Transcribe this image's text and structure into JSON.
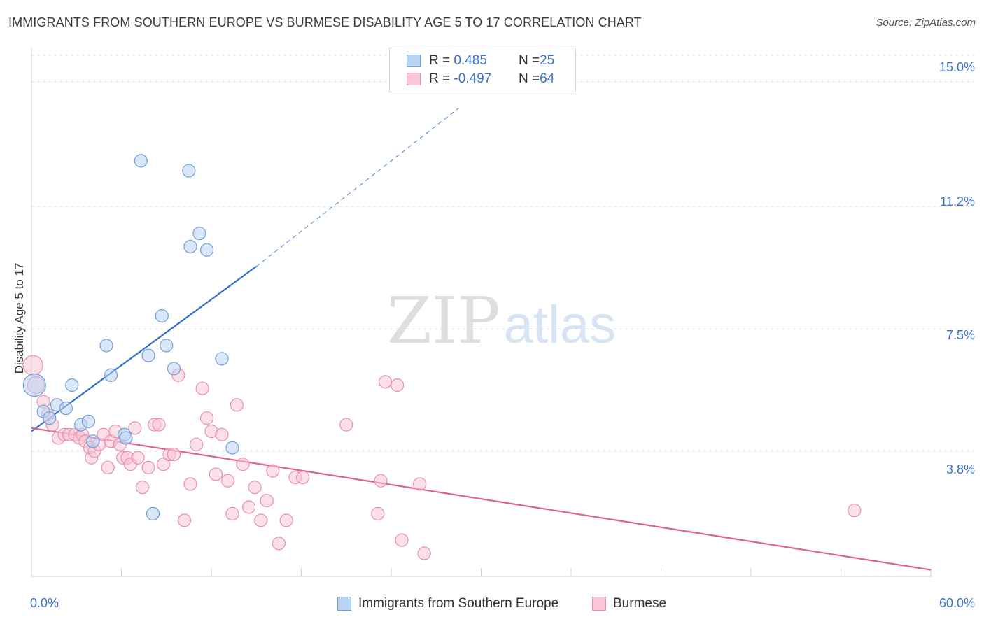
{
  "header": {
    "title": "IMMIGRANTS FROM SOUTHERN EUROPE VS BURMESE DISABILITY AGE 5 TO 17 CORRELATION CHART",
    "source": "Source: ZipAtlas.com"
  },
  "watermark": {
    "zip": "ZIP",
    "atlas": "atlas"
  },
  "legend": {
    "rows": [
      {
        "r_label": "R = ",
        "r_value": "0.485",
        "n_label": "N = ",
        "n_value": "25"
      },
      {
        "r_label": "R = ",
        "r_value": "-0.497",
        "n_label": "N = ",
        "n_value": "64"
      }
    ]
  },
  "bottom_legend": {
    "items": [
      "Immigrants from Southern Europe",
      "Burmese"
    ]
  },
  "colors": {
    "blue_fill": "#b9d3f3",
    "blue_stroke": "#6f9fd8",
    "blue_line": "#2f6fcc",
    "pink_fill": "#f8c6d6",
    "pink_stroke": "#e88fae",
    "pink_line": "#e0628f",
    "tick_text": "#3b74c9",
    "grid": "#dcdcdc"
  },
  "chart_data": {
    "type": "scatter",
    "title": "IMMIGRANTS FROM SOUTHERN EUROPE VS BURMESE DISABILITY AGE 5 TO 17 CORRELATION CHART",
    "xlabel": "",
    "ylabel": "Disability Age 5 to 17",
    "xlim": [
      0,
      60
    ],
    "ylim": [
      0,
      15.8
    ],
    "x_tick_labels": [
      "0.0%",
      "60.0%"
    ],
    "y_ticks": [
      3.8,
      7.5,
      11.2,
      15.0
    ],
    "y_tick_labels": [
      "3.8%",
      "7.5%",
      "11.2%",
      "15.0%"
    ],
    "grid": true,
    "series": [
      {
        "name": "Immigrants from Southern Europe",
        "color": "#b9d3f3",
        "points": [
          [
            0.2,
            5.8,
            16
          ],
          [
            0.8,
            5.0,
            9
          ],
          [
            1.2,
            4.8,
            9
          ],
          [
            1.7,
            5.2,
            9
          ],
          [
            2.3,
            5.1,
            9
          ],
          [
            2.7,
            5.8,
            9
          ],
          [
            3.3,
            4.6,
            9
          ],
          [
            3.8,
            4.7,
            9
          ],
          [
            4.1,
            4.1,
            9
          ],
          [
            5.0,
            7.0,
            9
          ],
          [
            5.3,
            6.1,
            9
          ],
          [
            6.2,
            4.3,
            9
          ],
          [
            6.3,
            4.2,
            9
          ],
          [
            7.3,
            12.6,
            9
          ],
          [
            7.8,
            6.7,
            9
          ],
          [
            8.1,
            1.9,
            9
          ],
          [
            8.7,
            7.9,
            9
          ],
          [
            9.0,
            7.0,
            9
          ],
          [
            9.5,
            6.3,
            9
          ],
          [
            10.5,
            12.3,
            9
          ],
          [
            10.6,
            10.0,
            9
          ],
          [
            11.2,
            10.4,
            9
          ],
          [
            11.7,
            9.9,
            9
          ],
          [
            12.7,
            6.6,
            9
          ],
          [
            13.4,
            3.9,
            9
          ]
        ]
      },
      {
        "name": "Burmese",
        "color": "#f8c6d6",
        "points": [
          [
            0.1,
            6.4,
            14
          ],
          [
            0.3,
            5.8,
            12
          ],
          [
            0.8,
            5.3,
            9
          ],
          [
            1.1,
            4.9,
            9
          ],
          [
            1.4,
            4.6,
            9
          ],
          [
            1.8,
            4.2,
            9
          ],
          [
            2.2,
            4.3,
            9
          ],
          [
            2.5,
            4.3,
            9
          ],
          [
            2.9,
            4.3,
            9
          ],
          [
            3.2,
            4.2,
            9
          ],
          [
            3.4,
            4.3,
            9
          ],
          [
            3.6,
            4.1,
            9
          ],
          [
            3.9,
            3.9,
            9
          ],
          [
            4.0,
            3.6,
            9
          ],
          [
            4.2,
            3.8,
            9
          ],
          [
            4.5,
            4.0,
            9
          ],
          [
            4.8,
            4.3,
            9
          ],
          [
            5.1,
            3.3,
            9
          ],
          [
            5.3,
            4.1,
            9
          ],
          [
            5.6,
            4.4,
            9
          ],
          [
            5.9,
            4.0,
            9
          ],
          [
            6.1,
            3.6,
            9
          ],
          [
            6.4,
            3.6,
            9
          ],
          [
            6.6,
            3.4,
            9
          ],
          [
            6.9,
            4.5,
            9
          ],
          [
            7.1,
            3.6,
            9
          ],
          [
            7.4,
            2.7,
            9
          ],
          [
            7.8,
            3.3,
            9
          ],
          [
            8.2,
            4.6,
            9
          ],
          [
            8.5,
            4.6,
            9
          ],
          [
            8.8,
            3.4,
            9
          ],
          [
            9.2,
            3.7,
            9
          ],
          [
            9.5,
            3.7,
            9
          ],
          [
            9.8,
            6.1,
            9
          ],
          [
            10.2,
            1.7,
            9
          ],
          [
            10.6,
            2.8,
            9
          ],
          [
            11.0,
            4.0,
            9
          ],
          [
            11.4,
            5.7,
            9
          ],
          [
            11.7,
            4.8,
            9
          ],
          [
            12.0,
            4.4,
            9
          ],
          [
            12.3,
            3.1,
            9
          ],
          [
            12.7,
            4.3,
            9
          ],
          [
            13.1,
            2.9,
            9
          ],
          [
            13.4,
            1.9,
            9
          ],
          [
            13.7,
            5.2,
            9
          ],
          [
            14.1,
            3.4,
            9
          ],
          [
            14.5,
            2.1,
            9
          ],
          [
            14.9,
            2.7,
            9
          ],
          [
            15.3,
            1.7,
            9
          ],
          [
            15.7,
            2.3,
            9
          ],
          [
            16.1,
            3.2,
            9
          ],
          [
            16.5,
            1.0,
            9
          ],
          [
            17.0,
            1.7,
            9
          ],
          [
            17.6,
            3.0,
            9
          ],
          [
            18.1,
            3.0,
            9
          ],
          [
            21.0,
            4.6,
            9
          ],
          [
            23.1,
            1.9,
            9
          ],
          [
            23.3,
            2.9,
            9
          ],
          [
            23.6,
            5.9,
            9
          ],
          [
            24.4,
            5.8,
            9
          ],
          [
            24.7,
            1.1,
            9
          ],
          [
            25.9,
            2.8,
            9
          ],
          [
            26.2,
            0.7,
            9
          ],
          [
            54.9,
            2.0,
            9
          ]
        ]
      }
    ],
    "trend_lines": [
      {
        "series": "Immigrants from Southern Europe",
        "solid": [
          [
            0,
            4.4
          ],
          [
            15,
            9.4
          ]
        ],
        "dashed": [
          [
            15,
            9.4
          ],
          [
            28.5,
            14.2
          ]
        ]
      },
      {
        "series": "Burmese",
        "solid": [
          [
            0,
            4.5
          ],
          [
            60,
            0.2
          ]
        ]
      }
    ]
  }
}
